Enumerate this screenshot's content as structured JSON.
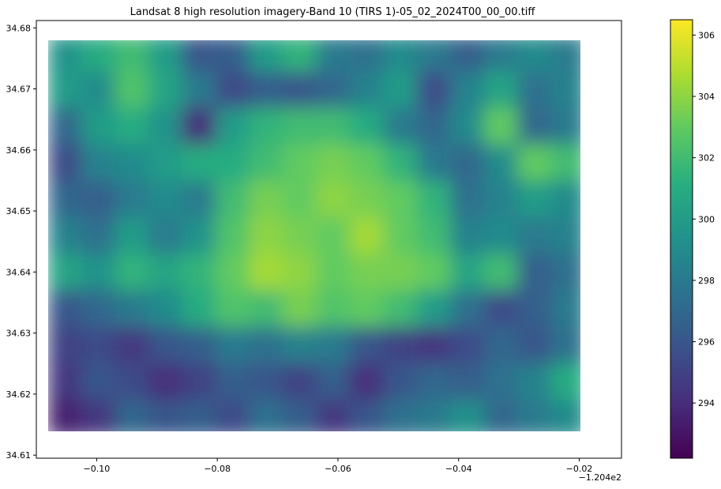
{
  "chart_data": {
    "type": "heatmap",
    "title": "Landsat 8 high resolution imagery-Band 10 (TIRS 1)-05_02_2024T00_00_00.tiff",
    "xlabel": "",
    "ylabel": "",
    "colormap": "viridis",
    "x_offset_text": "−1.204e2",
    "xlim": [
      -0.11,
      -0.013
    ],
    "ylim": [
      34.6095,
      34.6812
    ],
    "data_extent": {
      "x": [
        -0.108,
        -0.019
      ],
      "y": [
        34.613,
        34.6787
      ]
    },
    "x_ticks": [
      {
        "value": -0.1,
        "label": "−0.10"
      },
      {
        "value": -0.08,
        "label": "−0.08"
      },
      {
        "value": -0.06,
        "label": "−0.06"
      },
      {
        "value": -0.04,
        "label": "−0.04"
      },
      {
        "value": -0.02,
        "label": "−0.02"
      }
    ],
    "y_ticks": [
      {
        "value": 34.61,
        "label": "34.61"
      },
      {
        "value": 34.62,
        "label": "34.62"
      },
      {
        "value": 34.63,
        "label": "34.63"
      },
      {
        "value": 34.64,
        "label": "34.64"
      },
      {
        "value": 34.65,
        "label": "34.65"
      },
      {
        "value": 34.66,
        "label": "34.66"
      },
      {
        "value": 34.67,
        "label": "34.67"
      },
      {
        "value": 34.68,
        "label": "34.68"
      }
    ],
    "colorbar": {
      "range": [
        292.2,
        306.5
      ],
      "ticks": [
        294,
        296,
        298,
        300,
        302,
        304,
        306
      ],
      "tick_labels": [
        "294",
        "296",
        "298",
        "300",
        "302",
        "304",
        "306"
      ]
    },
    "grid": false,
    "values": [
      [
        299.5,
        301.0,
        302.0,
        300.0,
        296.0,
        296.5,
        300.0,
        301.5,
        298.0,
        297.5,
        299.0,
        298.0,
        296.5,
        298.0,
        299.0,
        298.0
      ],
      [
        300.0,
        299.0,
        302.5,
        300.5,
        298.0,
        295.5,
        296.5,
        296.0,
        297.0,
        298.5,
        300.0,
        295.5,
        298.5,
        300.5,
        297.5,
        298.5
      ],
      [
        297.0,
        300.0,
        301.0,
        299.5,
        294.0,
        300.0,
        301.5,
        302.0,
        302.0,
        301.0,
        298.0,
        297.0,
        299.0,
        303.0,
        297.0,
        298.0
      ],
      [
        295.5,
        298.5,
        299.0,
        300.0,
        301.0,
        301.0,
        302.0,
        303.0,
        303.5,
        303.0,
        301.5,
        298.0,
        297.0,
        299.0,
        303.0,
        302.0
      ],
      [
        297.0,
        296.5,
        298.0,
        299.0,
        298.0,
        302.0,
        303.5,
        303.0,
        304.0,
        303.5,
        303.0,
        301.5,
        297.5,
        298.5,
        300.0,
        299.0
      ],
      [
        298.5,
        297.5,
        300.0,
        298.0,
        299.5,
        302.5,
        304.0,
        303.5,
        303.0,
        304.5,
        303.0,
        302.0,
        298.5,
        299.0,
        298.0,
        298.5
      ],
      [
        300.5,
        299.5,
        301.5,
        300.5,
        301.5,
        303.0,
        304.5,
        304.0,
        303.0,
        303.5,
        303.5,
        303.0,
        300.5,
        302.0,
        296.5,
        297.5
      ],
      [
        296.0,
        297.0,
        298.0,
        299.0,
        301.0,
        302.5,
        302.0,
        303.5,
        302.5,
        303.0,
        302.0,
        300.0,
        297.5,
        295.5,
        296.5,
        298.0
      ],
      [
        295.0,
        295.5,
        294.5,
        296.0,
        296.5,
        298.0,
        297.5,
        298.5,
        298.0,
        296.0,
        295.0,
        294.5,
        295.5,
        297.0,
        296.0,
        297.5
      ],
      [
        294.5,
        296.0,
        295.5,
        294.0,
        295.0,
        296.5,
        296.0,
        295.0,
        296.5,
        294.0,
        296.0,
        297.0,
        296.5,
        297.5,
        298.5,
        301.0
      ],
      [
        293.5,
        294.5,
        297.0,
        296.0,
        296.5,
        295.5,
        297.5,
        296.5,
        294.5,
        296.0,
        297.5,
        298.0,
        299.5,
        297.0,
        298.0,
        299.0
      ]
    ]
  }
}
